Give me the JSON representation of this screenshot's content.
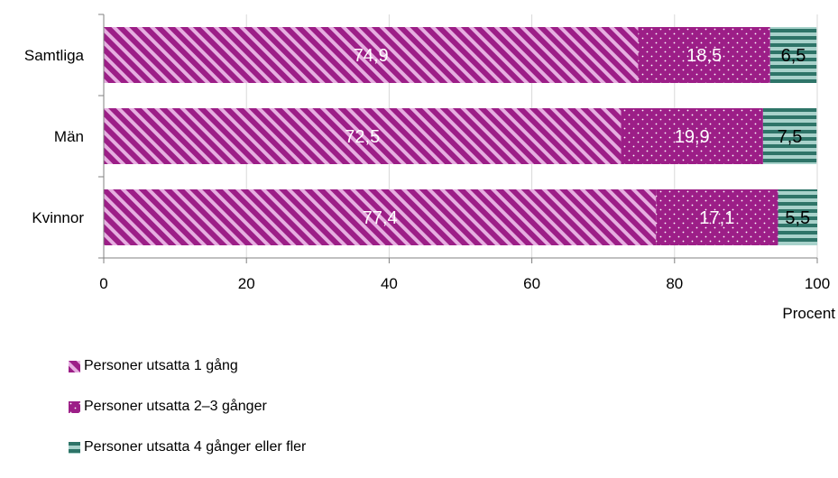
{
  "chart_data": {
    "type": "bar",
    "orientation": "horizontal",
    "stacked": true,
    "categories": [
      "Samtliga",
      "Män",
      "Kvinnor"
    ],
    "series": [
      {
        "name": "Personer utsatta 1 gång",
        "values": [
          74.9,
          72.5,
          77.4
        ],
        "labels": [
          "74,9",
          "72,5",
          "77,4"
        ],
        "color": "#9c1e87",
        "pattern": "diagonal-stripes"
      },
      {
        "name": "Personer utsatta 2–3 gånger",
        "values": [
          18.5,
          19.9,
          17.1
        ],
        "labels": [
          "18,5",
          "19,9",
          "17,1"
        ],
        "color": "#9c1e87",
        "pattern": "dots"
      },
      {
        "name": "Personer utsatta 4 gånger eller fler",
        "values": [
          6.5,
          7.5,
          5.5
        ],
        "labels": [
          "6,5",
          "7,5",
          "5,5"
        ],
        "color": "#2e7468",
        "pattern": "horizontal-stripes"
      }
    ],
    "xlim": [
      0,
      100
    ],
    "xticks": [
      0,
      20,
      40,
      60,
      80,
      100
    ],
    "xlabel": "Procent",
    "grid": "vertical",
    "legend_position": "bottom-left"
  }
}
